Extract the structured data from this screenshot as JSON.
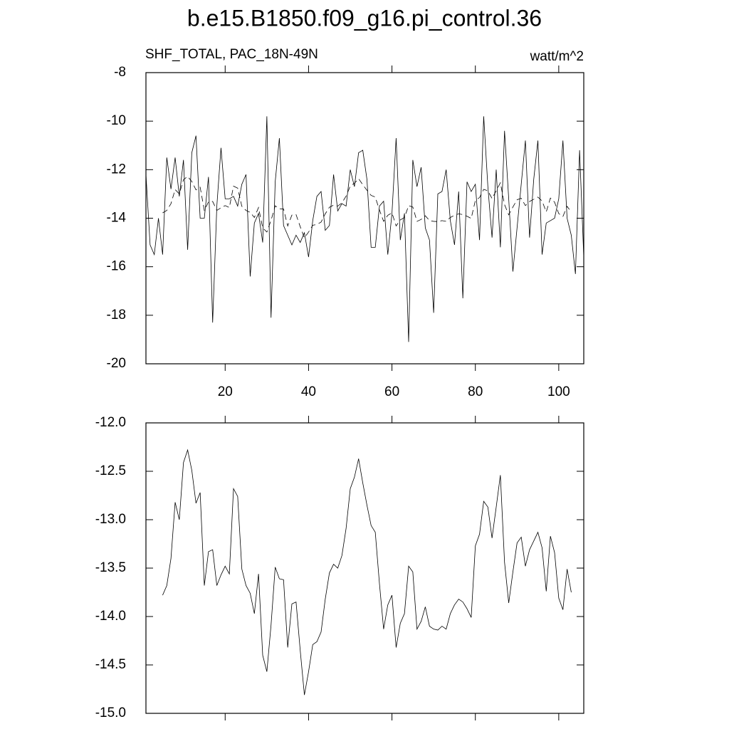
{
  "chart_data": [
    {
      "type": "line",
      "title": "b.e15.B1850.f09_g16.pi_control.36",
      "subtitle": "SHF_TOTAL, PAC_18N-49N",
      "units": "watt/m^2",
      "xlim": [
        1,
        106
      ],
      "ylim": [
        -20,
        -8
      ],
      "xticks": [
        20,
        40,
        60,
        80,
        100
      ],
      "yticks": [
        -20,
        -18,
        -16,
        -14,
        -12,
        -10,
        -8
      ],
      "xtick_labels": true,
      "series": [
        {
          "color": "#000000",
          "style": "solid",
          "x": [
            1,
            2,
            3,
            4,
            5,
            6,
            7,
            8,
            9,
            10,
            11,
            12,
            13,
            14,
            15,
            16,
            17,
            18,
            19,
            20,
            21,
            22,
            23,
            24,
            25,
            26,
            27,
            28,
            29,
            30,
            31,
            32,
            33,
            34,
            35,
            36,
            37,
            38,
            39,
            40,
            41,
            42,
            43,
            44,
            45,
            46,
            47,
            48,
            49,
            50,
            51,
            52,
            53,
            54,
            55,
            56,
            57,
            58,
            59,
            60,
            61,
            62,
            63,
            64,
            65,
            66,
            67,
            68,
            69,
            70,
            71,
            72,
            73,
            74,
            75,
            76,
            77,
            78,
            79,
            80,
            81,
            82,
            83,
            84,
            85,
            86,
            87,
            88,
            89,
            90,
            91,
            92,
            93,
            94,
            95,
            96,
            97,
            98,
            99,
            100,
            101,
            102,
            103,
            104,
            105,
            106
          ],
          "values": [
            -12.2,
            -15.1,
            -15.5,
            -14.0,
            -15.5,
            -11.5,
            -12.8,
            -11.5,
            -13.1,
            -11.6,
            -15.3,
            -11.3,
            -10.6,
            -14.0,
            -14.0,
            -12.3,
            -18.3,
            -13.5,
            -11.1,
            -13.2,
            -13.2,
            -13.1,
            -13.5,
            -12.6,
            -12.2,
            -16.4,
            -14.2,
            -13.8,
            -15.0,
            -9.8,
            -18.1,
            -12.5,
            -10.7,
            -14.3,
            -14.7,
            -15.1,
            -14.7,
            -15.0,
            -14.6,
            -15.6,
            -14.1,
            -13.1,
            -12.9,
            -14.5,
            -14.3,
            -12.2,
            -13.7,
            -13.4,
            -13.5,
            -12.0,
            -12.7,
            -11.3,
            -11.2,
            -12.4,
            -15.2,
            -15.2,
            -13.5,
            -13.3,
            -15.5,
            -13.8,
            -10.7,
            -14.9,
            -13.8,
            -19.1,
            -11.6,
            -12.7,
            -11.9,
            -14.4,
            -14.9,
            -17.9,
            -13.0,
            -12.9,
            -12.0,
            -14.1,
            -15.1,
            -12.9,
            -17.3,
            -12.5,
            -12.9,
            -12.6,
            -14.9,
            -9.8,
            -12.7,
            -14.8,
            -12.0,
            -15.2,
            -10.4,
            -13.2,
            -16.2,
            -14.4,
            -12.6,
            -10.8,
            -14.8,
            -12.4,
            -10.8,
            -15.5,
            -14.2,
            -14.1,
            -14.0,
            -13.2,
            -10.8,
            -14.0,
            -14.7,
            -16.3,
            -11.2,
            -15.6
          ]
        },
        {
          "color": "#000000",
          "style": "dashed",
          "x": [
            5,
            6,
            7,
            8,
            9,
            10,
            11,
            12,
            13,
            14,
            15,
            16,
            17,
            18,
            19,
            20,
            21,
            22,
            23,
            24,
            25,
            26,
            27,
            28,
            29,
            30,
            31,
            32,
            33,
            34,
            35,
            36,
            37,
            38,
            39,
            40,
            41,
            42,
            43,
            44,
            45,
            46,
            47,
            48,
            49,
            50,
            51,
            52,
            53,
            54,
            55,
            56,
            57,
            58,
            59,
            60,
            61,
            62,
            63,
            64,
            65,
            66,
            67,
            68,
            69,
            70,
            71,
            72,
            73,
            74,
            75,
            76,
            77,
            78,
            79,
            80,
            81,
            82,
            83,
            84,
            85,
            86,
            87,
            88,
            89,
            90,
            91,
            92,
            93,
            94,
            95,
            96,
            97,
            98,
            99,
            100,
            101,
            102,
            103
          ],
          "values": [
            -13.78,
            -13.68,
            -13.4,
            -12.82,
            -13.0,
            -12.41,
            -12.28,
            -12.49,
            -12.83,
            -12.72,
            -13.68,
            -13.33,
            -13.31,
            -13.68,
            -13.57,
            -13.48,
            -13.56,
            -12.68,
            -12.76,
            -13.51,
            -13.68,
            -13.76,
            -13.97,
            -13.56,
            -14.4,
            -14.57,
            -14.09,
            -13.49,
            -13.61,
            -13.62,
            -14.32,
            -13.87,
            -13.85,
            -14.35,
            -14.81,
            -14.57,
            -14.29,
            -14.26,
            -14.16,
            -13.82,
            -13.55,
            -13.46,
            -13.5,
            -13.37,
            -13.09,
            -12.68,
            -12.56,
            -12.37,
            -12.62,
            -12.85,
            -13.06,
            -13.13,
            -13.66,
            -14.13,
            -13.88,
            -13.78,
            -14.32,
            -14.07,
            -13.97,
            -13.48,
            -13.54,
            -14.13,
            -14.05,
            -13.9,
            -14.1,
            -14.13,
            -14.14,
            -14.1,
            -14.13,
            -13.97,
            -13.88,
            -13.82,
            -13.85,
            -13.92,
            -14.01,
            -13.27,
            -13.15,
            -12.81,
            -12.87,
            -13.19,
            -12.87,
            -12.54,
            -13.44,
            -13.86,
            -13.54,
            -13.24,
            -13.18,
            -13.48,
            -13.31,
            -13.22,
            -13.13,
            -13.29,
            -13.74,
            -13.17,
            -13.34,
            -13.81,
            -13.93,
            -13.51,
            -13.75
          ]
        }
      ]
    },
    {
      "type": "line",
      "xlim": [
        1,
        106
      ],
      "ylim": [
        -15,
        -12
      ],
      "xticks": [
        20,
        40,
        60,
        80,
        100
      ],
      "yticks": [
        {
          "value": -15,
          "label": "-15.0"
        },
        {
          "value": -14.5,
          "label": "-14.5"
        },
        {
          "value": -14,
          "label": "-14.0"
        },
        {
          "value": -13.5,
          "label": "-13.5"
        },
        {
          "value": -13,
          "label": "-13.0"
        },
        {
          "value": -12.5,
          "label": "-12.5"
        },
        {
          "value": -12,
          "label": "-12.0"
        }
      ],
      "xtick_labels": false,
      "series": [
        {
          "color": "#000000",
          "style": "solid",
          "x": [
            5,
            6,
            7,
            8,
            9,
            10,
            11,
            12,
            13,
            14,
            15,
            16,
            17,
            18,
            19,
            20,
            21,
            22,
            23,
            24,
            25,
            26,
            27,
            28,
            29,
            30,
            31,
            32,
            33,
            34,
            35,
            36,
            37,
            38,
            39,
            40,
            41,
            42,
            43,
            44,
            45,
            46,
            47,
            48,
            49,
            50,
            51,
            52,
            53,
            54,
            55,
            56,
            57,
            58,
            59,
            60,
            61,
            62,
            63,
            64,
            65,
            66,
            67,
            68,
            69,
            70,
            71,
            72,
            73,
            74,
            75,
            76,
            77,
            78,
            79,
            80,
            81,
            82,
            83,
            84,
            85,
            86,
            87,
            88,
            89,
            90,
            91,
            92,
            93,
            94,
            95,
            96,
            97,
            98,
            99,
            100,
            101,
            102,
            103
          ],
          "values": [
            -13.78,
            -13.68,
            -13.4,
            -12.82,
            -13.0,
            -12.41,
            -12.28,
            -12.49,
            -12.83,
            -12.72,
            -13.68,
            -13.33,
            -13.31,
            -13.68,
            -13.57,
            -13.48,
            -13.56,
            -12.68,
            -12.76,
            -13.51,
            -13.68,
            -13.76,
            -13.97,
            -13.56,
            -14.4,
            -14.57,
            -14.09,
            -13.49,
            -13.61,
            -13.62,
            -14.32,
            -13.87,
            -13.85,
            -14.35,
            -14.81,
            -14.57,
            -14.29,
            -14.26,
            -14.16,
            -13.82,
            -13.55,
            -13.46,
            -13.5,
            -13.37,
            -13.09,
            -12.68,
            -12.56,
            -12.37,
            -12.62,
            -12.85,
            -13.06,
            -13.13,
            -13.66,
            -14.13,
            -13.88,
            -13.78,
            -14.32,
            -14.07,
            -13.97,
            -13.48,
            -13.54,
            -14.13,
            -14.05,
            -13.9,
            -14.1,
            -14.13,
            -14.14,
            -14.1,
            -14.13,
            -13.97,
            -13.88,
            -13.82,
            -13.85,
            -13.92,
            -14.01,
            -13.27,
            -13.15,
            -12.81,
            -12.87,
            -13.19,
            -12.87,
            -12.54,
            -13.44,
            -13.86,
            -13.54,
            -13.24,
            -13.18,
            -13.48,
            -13.31,
            -13.22,
            -13.13,
            -13.29,
            -13.74,
            -13.17,
            -13.34,
            -13.81,
            -13.93,
            -13.51,
            -13.75
          ]
        }
      ]
    }
  ]
}
